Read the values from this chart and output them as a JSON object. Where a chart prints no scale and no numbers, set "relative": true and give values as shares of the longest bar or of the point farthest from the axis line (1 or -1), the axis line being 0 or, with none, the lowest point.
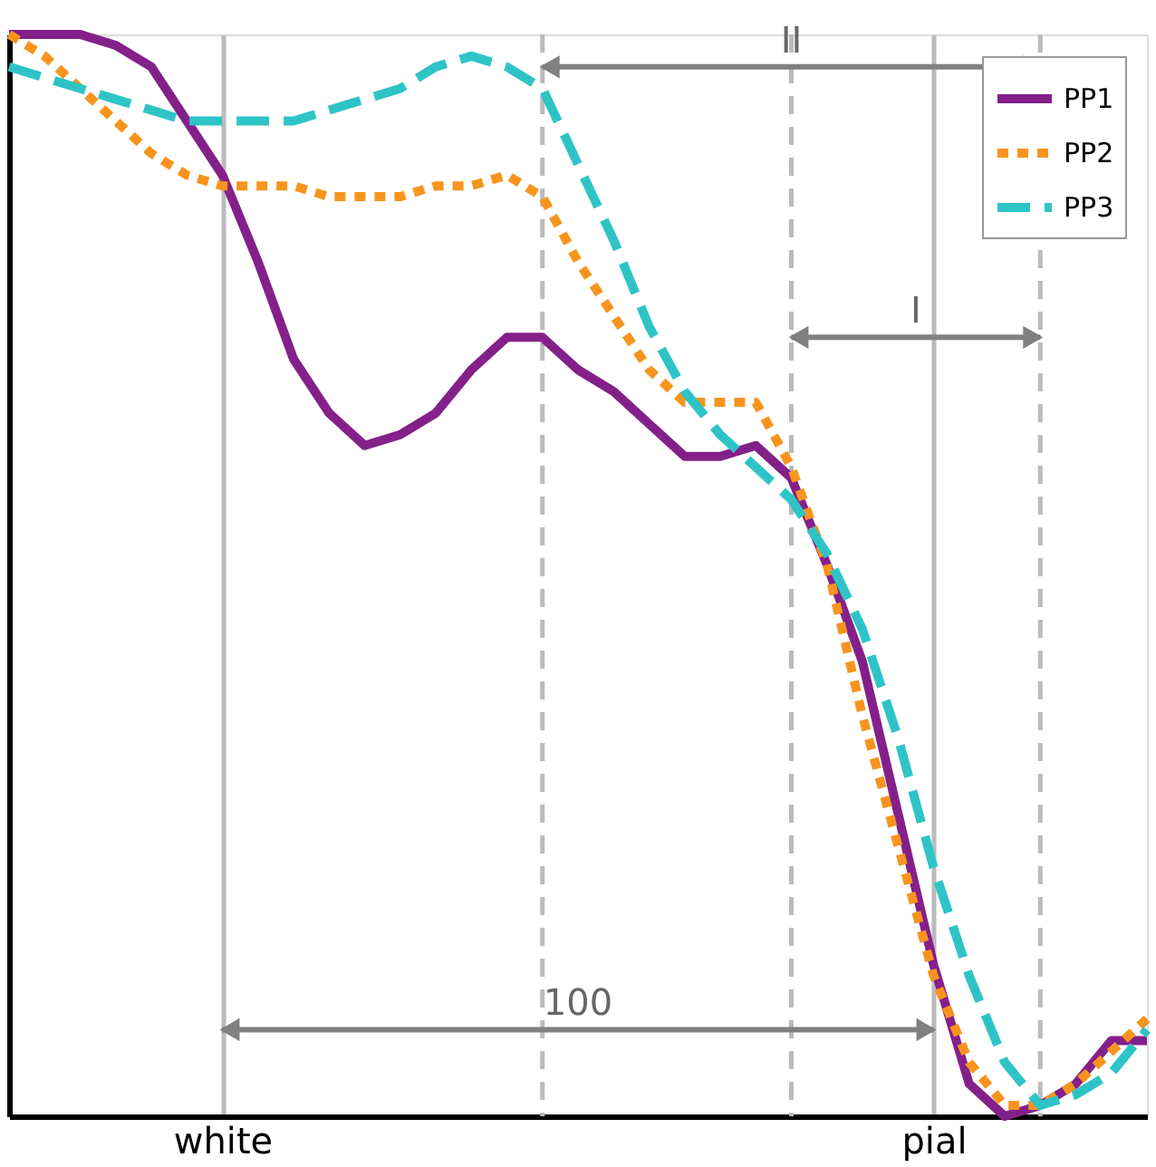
{
  "chart_data": {
    "type": "line",
    "relative": true,
    "grid": "x",
    "legend": "top right",
    "marker": "none",
    "categories": [
      null,
      null,
      null,
      null,
      null,
      null,
      "white",
      null,
      null,
      null,
      null,
      null,
      null,
      null,
      null,
      null,
      null,
      null,
      null,
      null,
      null,
      null,
      null,
      null,
      null,
      null,
      "pial",
      null,
      null,
      null,
      null,
      null,
      null
    ],
    "series": [
      {
        "name": "PP1",
        "color": "#84208a",
        "line_style": "solid",
        "values": [
          1.0,
          1.0,
          1.0,
          0.99,
          0.97,
          0.92,
          0.87,
          0.79,
          0.7,
          0.65,
          0.62,
          0.63,
          0.65,
          0.69,
          0.72,
          0.72,
          0.69,
          0.67,
          0.64,
          0.61,
          0.61,
          0.62,
          0.59,
          0.51,
          0.42,
          0.28,
          0.14,
          0.03,
          0.0,
          0.01,
          0.03,
          0.07,
          0.07
        ]
      },
      {
        "name": "PP2",
        "color": "#f7941d",
        "line_style": "dotted",
        "values": [
          1.0,
          0.98,
          0.95,
          0.92,
          0.89,
          0.87,
          0.86,
          0.86,
          0.86,
          0.85,
          0.85,
          0.85,
          0.86,
          0.86,
          0.87,
          0.85,
          0.79,
          0.74,
          0.69,
          0.66,
          0.66,
          0.66,
          0.6,
          0.51,
          0.37,
          0.25,
          0.13,
          0.05,
          0.01,
          0.01,
          0.03,
          0.06,
          0.09
        ]
      },
      {
        "name": "PP3",
        "color": "#2ec4c6",
        "line_style": "dashed",
        "values": [
          0.97,
          0.96,
          0.95,
          0.94,
          0.93,
          0.92,
          0.92,
          0.92,
          0.92,
          0.93,
          0.94,
          0.95,
          0.97,
          0.98,
          0.97,
          0.95,
          0.88,
          0.81,
          0.73,
          0.67,
          0.63,
          0.6,
          0.57,
          0.52,
          0.45,
          0.35,
          0.23,
          0.13,
          0.05,
          0.01,
          0.02,
          0.04,
          0.08
        ]
      }
    ],
    "annotations": [
      "100",
      "II",
      "I"
    ]
  }
}
